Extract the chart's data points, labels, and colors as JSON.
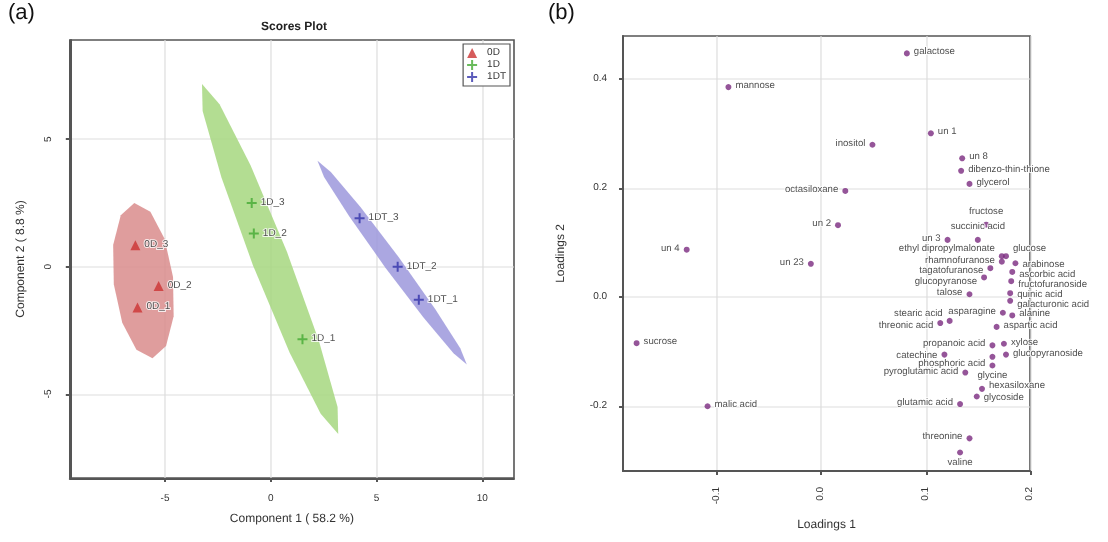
{
  "chart_data": [
    {
      "type": "scatter",
      "title": "Scores Plot",
      "xlabel": "Component 1 ( 58.2 %)",
      "ylabel": "Component 2 ( 8.8 %)",
      "annotations": [
        "(a)"
      ],
      "xlim": [
        -9.5,
        11.5
      ],
      "ylim": [
        -8.3,
        8.9
      ],
      "xticks": [
        -5,
        0,
        5,
        10
      ],
      "yticks": [
        -5,
        0,
        5
      ],
      "grid": true,
      "legend": "top right",
      "series": [
        {
          "type": "area",
          "color": "#d98c8c",
          "x": [
            -6.45,
            -5.69,
            -5.02,
            -4.62,
            -4.59,
            -4.95,
            -5.59,
            -6.35,
            -7.02,
            -7.42,
            -7.45,
            -7.09,
            -6.45
          ],
          "values": [
            2.5,
            2.16,
            1.1,
            -0.41,
            -1.95,
            -3.12,
            -3.6,
            -3.26,
            -2.2,
            -0.69,
            0.85,
            2.02,
            2.5
          ]
        },
        {
          "type": "area",
          "color": "#a6d77f",
          "x": [
            -3.25,
            -2.42,
            -0.95,
            0.77,
            2.27,
            3.16,
            3.19,
            2.36,
            0.89,
            -0.83,
            -2.33,
            -3.22,
            -3.25
          ],
          "values": [
            7.17,
            6.38,
            3.97,
            0.57,
            -2.9,
            -5.51,
            -6.57,
            -5.78,
            -3.37,
            0.03,
            3.5,
            6.11,
            7.17
          ]
        },
        {
          "type": "area",
          "color": "#9c98dc",
          "x": [
            2.21,
            2.84,
            4.25,
            6.06,
            7.78,
            8.96,
            9.27,
            8.64,
            7.23,
            5.42,
            3.7,
            2.52,
            2.21
          ],
          "values": [
            4.16,
            3.72,
            2.33,
            0.36,
            -1.67,
            -3.2,
            -3.84,
            -3.4,
            -2.01,
            -0.04,
            1.99,
            3.52,
            4.16
          ]
        },
        {
          "type": "scatter",
          "name": "0D",
          "color": "#cc3333",
          "marker": "triangle",
          "x": [
            -6.4,
            -5.3,
            -6.3
          ],
          "values": [
            0.84,
            -0.76,
            -1.6
          ],
          "value_labels": [
            "0D_3",
            "0D_2",
            "0D_1"
          ]
        },
        {
          "type": "scatter",
          "name": "1D",
          "color": "#44aa33",
          "marker": "cross",
          "x": [
            -0.9,
            -0.8,
            1.5
          ],
          "values": [
            2.5,
            1.3,
            -2.85
          ],
          "value_labels": [
            "1D_3",
            "1D_2",
            "1D_1"
          ]
        },
        {
          "type": "scatter",
          "name": "1DT",
          "color": "#3333aa",
          "marker": "cross",
          "x": [
            4.2,
            6.0,
            7.0
          ],
          "values": [
            1.9,
            0.0,
            -1.3
          ],
          "value_labels": [
            "1DT_3",
            "1DT_2",
            "1DT_1"
          ]
        }
      ]
    },
    {
      "type": "scatter",
      "xlabel": "Loadings 1",
      "ylabel": "Loadings 2",
      "annotations": [
        "(b)"
      ],
      "xlim": [
        -0.19,
        0.2
      ],
      "ylim": [
        -0.32,
        0.48
      ],
      "xticks": [
        -0.1,
        {
          "value": 0,
          "label": "0.0"
        },
        0.1,
        0.2
      ],
      "yticks": [
        -0.2,
        {
          "value": 0,
          "label": "0.0"
        },
        0.2,
        0.4
      ],
      "grid": true,
      "series": [
        {
          "type": "scatter",
          "color": "#7a2b80",
          "marker": "circle",
          "x": [
            0.082,
            -0.089,
            0.049,
            0.105,
            0.135,
            0.134,
            0.142,
            0.023,
            0.016,
            0.158,
            0.121,
            0.15,
            -0.129,
            -0.01,
            0.173,
            0.177,
            0.173,
            0.186,
            0.162,
            0.183,
            0.156,
            0.182,
            0.142,
            0.181,
            0.181,
            0.123,
            0.114,
            0.174,
            0.183,
            0.168,
            0.164,
            0.175,
            0.177,
            0.118,
            0.164,
            0.164,
            0.138,
            0.154,
            0.149,
            0.133,
            0.142,
            0.133,
            -0.177,
            -0.109
          ],
          "values": [
            0.448,
            0.386,
            0.28,
            0.301,
            0.255,
            0.232,
            0.208,
            0.195,
            0.132,
            0.133,
            0.105,
            0.105,
            0.087,
            0.061,
            0.075,
            0.075,
            0.065,
            0.062,
            0.053,
            0.046,
            0.036,
            0.029,
            0.005,
            0.007,
            -0.007,
            -0.044,
            -0.048,
            -0.029,
            -0.034,
            -0.055,
            -0.089,
            -0.086,
            -0.106,
            -0.106,
            -0.11,
            -0.126,
            -0.139,
            -0.169,
            -0.183,
            -0.197,
            -0.26,
            -0.286,
            -0.085,
            -0.201
          ],
          "value_labels": [
            "galactose",
            "mannose",
            "inositol",
            "un 1",
            "un 8",
            "dibenzo-thin-thione",
            "glycerol",
            "octasiloxane",
            "un 2",
            "fructose",
            "un 3",
            "succinic acid",
            "un 4",
            "un 23",
            "ethyl dipropylmalonate",
            "glucose",
            "rhamnofuranose",
            "arabinose",
            "tagatofuranose",
            "ascorbic acid",
            "glucopyranose",
            "fructofuranoside",
            "talose",
            "quinic acid",
            "galacturonic acid",
            "stearic acid",
            "threonic acid",
            "asparagine",
            "alanine",
            "aspartic acid",
            "propanoic acid",
            "xylose",
            "glucopyranoside",
            "catechine",
            "phosphoric acid",
            "glycine",
            "pyroglutamic acid",
            "hexasiloxane",
            "glycoside",
            "glutamic acid",
            "threonine",
            "valine",
            "sucrose",
            "malic acid"
          ]
        }
      ]
    }
  ]
}
